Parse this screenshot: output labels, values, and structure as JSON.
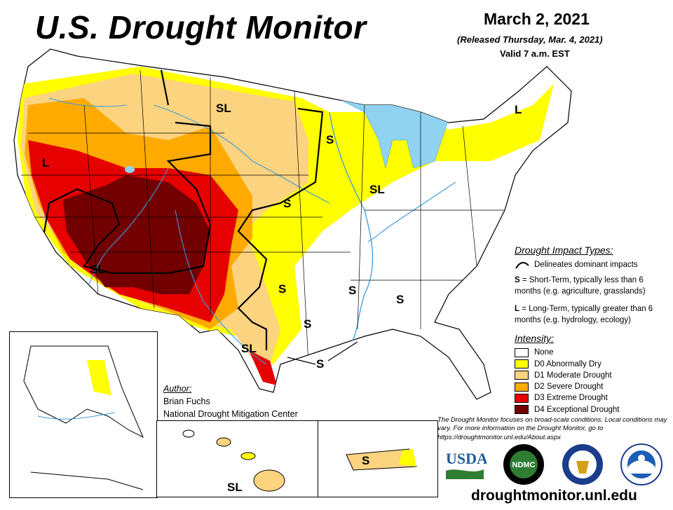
{
  "header": {
    "title": "U.S. Drought Monitor",
    "date": "March 2, 2021",
    "released": "(Released Thursday, Mar. 4, 2021)",
    "valid": "Valid 7 a.m. EST"
  },
  "map_labels": {
    "sl_northwest": "SL",
    "l_california": "L",
    "sl_southwest": "SL",
    "s_minnesota": "S",
    "s_kansas": "S",
    "sl_illinois": "SL",
    "s_oklahoma": "S",
    "s_arkansas": "S",
    "s_louisiana": "S",
    "s_east_texas": "S",
    "sl_south_texas": "SL",
    "s_gulf": "S",
    "l_maine": "L",
    "sl_hawaii": "SL",
    "s_puerto_rico": "S"
  },
  "impact_legend": {
    "title": "Drought Impact Types:",
    "delineates": "Delineates dominant impacts",
    "short_term_key": "S",
    "short_term_text": " = Short-Term, typically less than 6 months (e.g. agriculture, grasslands)",
    "long_term_key": "L",
    "long_term_text": " = Long-Term, typically greater than 6 months (e.g. hydrology, ecology)"
  },
  "intensity_legend": {
    "title": "Intensity:",
    "items": [
      {
        "label": "None",
        "color": "#ffffff"
      },
      {
        "label": "D0 Abnormally Dry",
        "color": "#ffff00"
      },
      {
        "label": "D1 Moderate Drought",
        "color": "#fcd37f"
      },
      {
        "label": "D2 Severe Drought",
        "color": "#ffaa00"
      },
      {
        "label": "D3 Extreme Drought",
        "color": "#e60000"
      },
      {
        "label": "D4 Exceptional Drought",
        "color": "#730000"
      }
    ]
  },
  "author": {
    "heading": "Author:",
    "name": "Brian Fuchs",
    "org": "National Drought Mitigation Center"
  },
  "disclaimer": "The Drought Monitor focuses on broad-scale conditions. Local conditions may vary. For more information on the Drought Monitor, go to https://droughtmonitor.unl.edu/About.aspx",
  "logos": {
    "usda": "USDA",
    "ndmc": "NDMC"
  },
  "website": "droughtmonitor.unl.edu",
  "colors": {
    "water": "#8fd3f0",
    "river": "#3a9bdc"
  }
}
